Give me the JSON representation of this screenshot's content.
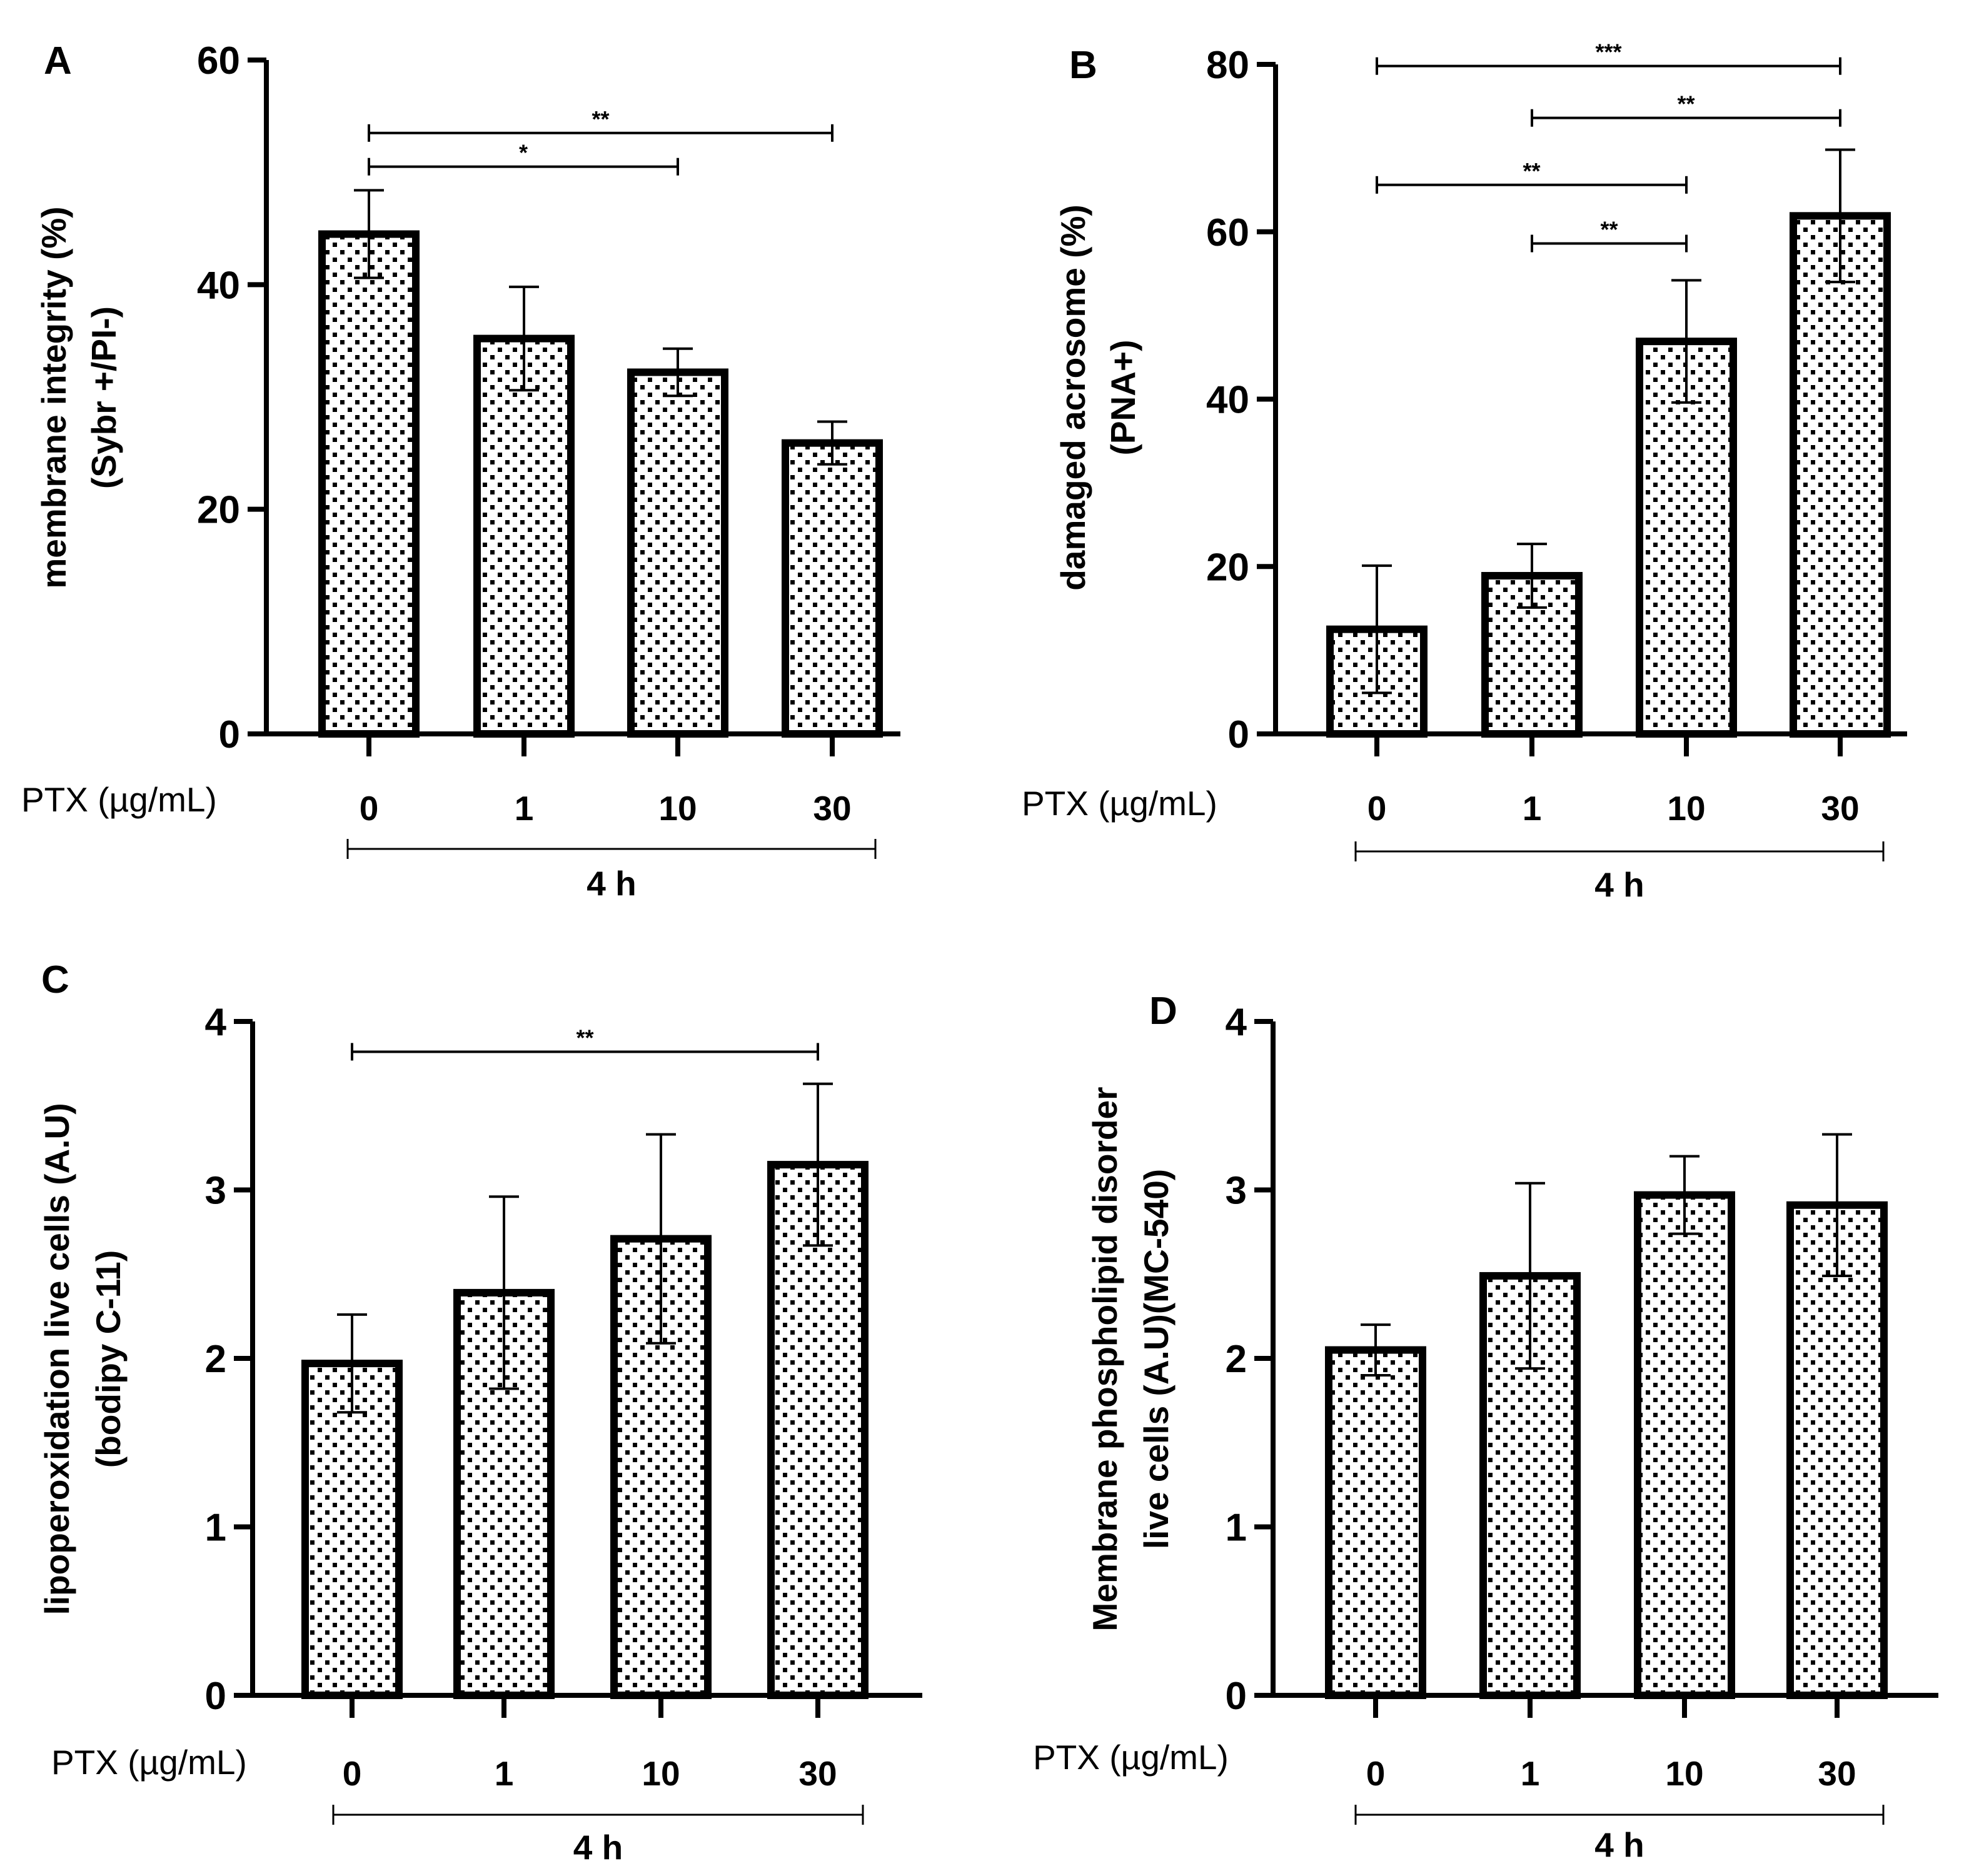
{
  "figure": {
    "colors": {
      "ink": "#000000",
      "fill": "#ffffff"
    },
    "fill_pattern": "dotted"
  },
  "chart_data": [
    {
      "panel": "A",
      "type": "bar",
      "title": "",
      "ylabel": [
        "membrane integrity (%)",
        "(Sybr +/PI-)"
      ],
      "xlabel": "PTX (µg/mL)",
      "group_label": "4 h",
      "categories": [
        "0",
        "1",
        "10",
        "30"
      ],
      "values": [
        44.5,
        35.2,
        32.2,
        25.9
      ],
      "errors": [
        3.9,
        4.6,
        2.1,
        1.9
      ],
      "ylim": [
        0,
        60
      ],
      "yticks": [
        0,
        20,
        40,
        60
      ],
      "significance": [
        {
          "from": 0,
          "to": 3,
          "label": "**",
          "y": 53.5
        },
        {
          "from": 0,
          "to": 2,
          "label": "*",
          "y": 50.5
        }
      ]
    },
    {
      "panel": "B",
      "type": "bar",
      "title": "",
      "ylabel": [
        "damaged acrosome (%)",
        "(PNA+)"
      ],
      "xlabel": "PTX (µg/mL)",
      "group_label": "4 h",
      "categories": [
        "0",
        "1",
        "10",
        "30"
      ],
      "values": [
        12.5,
        18.9,
        46.9,
        61.9
      ],
      "errors": [
        7.6,
        3.8,
        7.3,
        7.9
      ],
      "ylim": [
        0,
        80
      ],
      "yticks": [
        0,
        20,
        40,
        60,
        80
      ],
      "significance": [
        {
          "from": 0,
          "to": 3,
          "label": "***",
          "y": 79.8
        },
        {
          "from": 1,
          "to": 3,
          "label": "**",
          "y": 73.6
        },
        {
          "from": 0,
          "to": 2,
          "label": "**",
          "y": 65.6
        },
        {
          "from": 1,
          "to": 2,
          "label": "**",
          "y": 58.6
        }
      ]
    },
    {
      "panel": "C",
      "type": "bar",
      "title": "",
      "ylabel": [
        "lipoperoxidation live cells (A.U)",
        "(bodipy C-11)"
      ],
      "xlabel": "PTX (µg/mL)",
      "group_label": "4 h",
      "categories": [
        "0",
        "1",
        "10",
        "30"
      ],
      "values": [
        1.97,
        2.39,
        2.71,
        3.15
      ],
      "errors": [
        0.29,
        0.57,
        0.62,
        0.48
      ],
      "ylim": [
        0,
        4
      ],
      "yticks": [
        0,
        1,
        2,
        3,
        4
      ],
      "significance": [
        {
          "from": 0,
          "to": 3,
          "label": "**",
          "y": 3.82
        }
      ]
    },
    {
      "panel": "D",
      "type": "bar",
      "title": "",
      "ylabel": [
        "Membrane phospholipid disorder",
        "live cells (A.U)(MC-540)"
      ],
      "xlabel": "PTX (µg/mL)",
      "group_label": "4 h",
      "categories": [
        "0",
        "1",
        "10",
        "30"
      ],
      "values": [
        2.05,
        2.49,
        2.97,
        2.91
      ],
      "errors": [
        0.15,
        0.55,
        0.23,
        0.42
      ],
      "ylim": [
        0,
        4
      ],
      "yticks": [
        0,
        1,
        2,
        3,
        4
      ],
      "significance": []
    }
  ]
}
